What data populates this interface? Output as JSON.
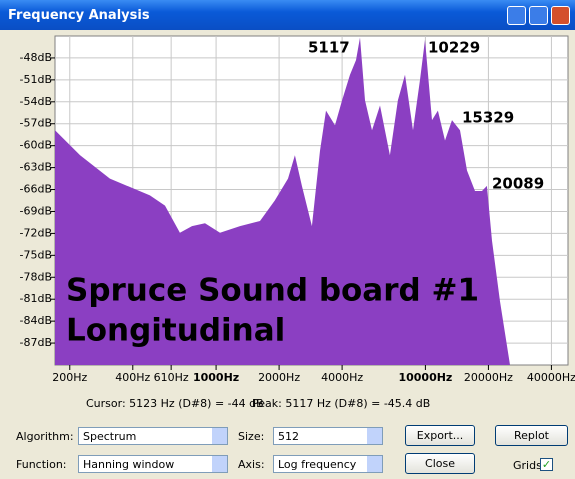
{
  "window": {
    "title": "Frequency Analysis"
  },
  "chart_data": {
    "type": "area",
    "x_scale": "log",
    "grid": true,
    "color": "#8b3fc2",
    "x": [
      170,
      224,
      311,
      483,
      570,
      672,
      767,
      885,
      1044,
      1301,
      1621,
      1908,
      2206,
      2381,
      2571,
      2870,
      3135,
      3349,
      3701,
      3999,
      4365,
      4663,
      4870,
      5143,
      5557,
      6068,
      6768,
      7390,
      7987,
      8724,
      9421,
      9954,
      10750,
      11480,
      12410,
      13400,
      14630,
      15800,
      17250,
      18630,
      19680,
      20800,
      22720
    ],
    "values": [
      -57.9,
      -61.3,
      -64.5,
      -66.8,
      -68.2,
      -71.9,
      -71,
      -70.6,
      -71.9,
      -71,
      -70.3,
      -67.5,
      -64.5,
      -61.3,
      -65.5,
      -71,
      -60.7,
      -55.2,
      -57.2,
      -53.8,
      -50.3,
      -48.3,
      -45.2,
      -53.8,
      -57.9,
      -54.5,
      -61.3,
      -53.8,
      -50.3,
      -57.9,
      -51,
      -45.5,
      -56.5,
      -55.2,
      -59.3,
      -56.5,
      -57.9,
      -63.4,
      -66.2,
      -66.2,
      -65.5,
      -73,
      -81.3
    ],
    "xlim": [
      170,
      48000
    ],
    "ylim": [
      -90,
      -45
    ],
    "xticks": [
      {
        "value": 200,
        "label": "200Hz"
      },
      {
        "value": 400,
        "label": "400Hz"
      },
      {
        "value": 610,
        "label": "610Hz"
      },
      {
        "value": 1000,
        "label": "1000Hz"
      },
      {
        "value": 2000,
        "label": "2000Hz"
      },
      {
        "value": 4000,
        "label": "4000Hz"
      },
      {
        "value": 10000,
        "label": "10000Hz"
      },
      {
        "value": 20000,
        "label": "20000Hz"
      },
      {
        "value": 40000,
        "label": "40000Hz"
      }
    ],
    "yticks": [
      {
        "value": -48,
        "label": "-48dB"
      },
      {
        "value": -51,
        "label": "-51dB"
      },
      {
        "value": -54,
        "label": "-54dB"
      },
      {
        "value": -57,
        "label": "-57dB"
      },
      {
        "value": -60,
        "label": "-60dB"
      },
      {
        "value": -63,
        "label": "-63dB"
      },
      {
        "value": -66,
        "label": "-66dB"
      },
      {
        "value": -69,
        "label": "-69dB"
      },
      {
        "value": -72,
        "label": "-72dB"
      },
      {
        "value": -75,
        "label": "-75dB"
      },
      {
        "value": -78,
        "label": "-78dB"
      },
      {
        "value": -81,
        "label": "-81dB"
      },
      {
        "value": -84,
        "label": "-84dB"
      },
      {
        "value": -87,
        "label": "-87dB"
      }
    ],
    "annotations": [
      "5117",
      "10229",
      "15329",
      "20089"
    ],
    "caption": [
      "Spruce Sound board #1",
      "Longitudinal"
    ]
  },
  "status": {
    "cursor": "Cursor: 5123 Hz (D#8) = -44 dB",
    "peak": "Peak: 5117 Hz (D#8) = -45.4 dB"
  },
  "controls": {
    "algorithm_label": "Algorithm:",
    "algorithm": "Spectrum",
    "size_label": "Size:",
    "size": "512",
    "export": "Export...",
    "replot": "Replot",
    "function_label": "Function:",
    "function": "Hanning window",
    "axis_label": "Axis:",
    "axis": "Log frequency",
    "close": "Close",
    "grids_label": "Grids"
  }
}
